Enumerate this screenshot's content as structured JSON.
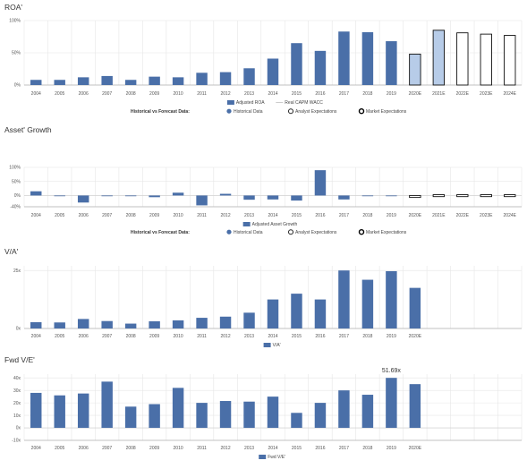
{
  "colors": {
    "historical": "#4a6fa8",
    "analyst": "#b7cce8",
    "market_outline": "#111111",
    "grid": "#e6e6e6",
    "axis": "#b0b0b0",
    "wacc": "#cccccc"
  },
  "chart_data": [
    {
      "id": "roa",
      "type": "bar",
      "title": "ROA'",
      "categories": [
        "2004",
        "2005",
        "2006",
        "2007",
        "2008",
        "2009",
        "2010",
        "2011",
        "2012",
        "2013",
        "2014",
        "2015",
        "2016",
        "2017",
        "2018",
        "2019",
        "2020E",
        "2021E",
        "2022E",
        "2023E",
        "2024E"
      ],
      "y_ticks": [
        "0%",
        "50%",
        "100%"
      ],
      "ylim": [
        0,
        100
      ],
      "historical_values": [
        8,
        8,
        12,
        14,
        8,
        13,
        12,
        19,
        20,
        26,
        41,
        65,
        53,
        83,
        82,
        68,
        null,
        null,
        null,
        null,
        null
      ],
      "forecast_values": [
        null,
        null,
        null,
        null,
        null,
        null,
        null,
        null,
        null,
        null,
        null,
        null,
        null,
        null,
        null,
        null,
        48,
        85,
        81,
        79,
        77
      ],
      "forecast_styles": [
        "analyst",
        "analyst",
        "market",
        "market",
        "market"
      ],
      "series_legend": [
        {
          "name": "Adjusted ROA",
          "swatch": "bar"
        },
        {
          "name": "Real CAPM WACC",
          "swatch": "line"
        }
      ],
      "forecast_legend": {
        "heading": "Historical vs Forecast Data:",
        "items": [
          "Historical Data",
          "Analyst Expectations",
          "Market Expectations"
        ]
      }
    },
    {
      "id": "asset_growth",
      "type": "bar",
      "title": "Asset' Growth",
      "categories": [
        "2004",
        "2005",
        "2006",
        "2007",
        "2008",
        "2009",
        "2010",
        "2011",
        "2012",
        "2013",
        "2014",
        "2015",
        "2016",
        "2017",
        "2018",
        "2019",
        "2020E",
        "2021E",
        "2022E",
        "2023E",
        "2024E"
      ],
      "y_ticks": [
        "-40%",
        "0%",
        "50%",
        "100%"
      ],
      "ylim": [
        -40,
        100
      ],
      "historical_values": [
        15,
        0,
        -25,
        0,
        -1,
        -6,
        10,
        -35,
        6,
        -15,
        -14,
        -18,
        90,
        -14,
        0,
        0,
        null,
        null,
        null,
        null,
        null
      ],
      "forecast_values": [
        null,
        null,
        null,
        null,
        null,
        null,
        null,
        null,
        null,
        null,
        null,
        null,
        null,
        null,
        null,
        null,
        -3,
        3,
        3,
        3,
        3
      ],
      "forecast_styles": [
        "market",
        "market",
        "market",
        "market",
        "market"
      ],
      "series_legend": [
        {
          "name": "Adjusted Asset Growth",
          "swatch": "bar"
        }
      ],
      "forecast_legend": {
        "heading": "Historical vs Forecast Data:",
        "items": [
          "Historical Data",
          "Analyst Expectations",
          "Market Expectations"
        ]
      }
    },
    {
      "id": "va",
      "type": "bar",
      "title": "V/A'",
      "categories": [
        "2004",
        "2005",
        "2006",
        "2007",
        "2008",
        "2009",
        "2010",
        "2011",
        "2012",
        "2013",
        "2014",
        "2015",
        "2016",
        "2017",
        "2018",
        "2019",
        "2020E",
        "",
        "",
        "",
        ""
      ],
      "y_ticks": [
        "0x",
        "25x"
      ],
      "ylim": [
        0,
        27
      ],
      "historical_values": [
        2.7,
        2.6,
        4.1,
        3.2,
        2.1,
        3.1,
        3.5,
        4.6,
        5.1,
        6.8,
        12.5,
        15.0,
        12.5,
        25.0,
        21.0,
        24.7,
        17.5,
        null,
        null,
        null,
        null
      ],
      "forecast_values": [
        null,
        null,
        null,
        null,
        null,
        null,
        null,
        null,
        null,
        null,
        null,
        null,
        null,
        null,
        null,
        null,
        null,
        null,
        null,
        null,
        null
      ],
      "forecast_styles": [],
      "series_legend": [
        {
          "name": "V/A'",
          "swatch": "bar"
        }
      ],
      "forecast_legend": null
    },
    {
      "id": "fwd_ve",
      "type": "bar",
      "title": "Fwd V/E'",
      "categories": [
        "2004",
        "2005",
        "2006",
        "2007",
        "2008",
        "2009",
        "2010",
        "2011",
        "2012",
        "2013",
        "2014",
        "2015",
        "2016",
        "2017",
        "2018",
        "2019",
        "2020E",
        "",
        "",
        "",
        ""
      ],
      "y_ticks": [
        "-10x",
        "0x",
        "10x",
        "20x",
        "30x",
        "40x"
      ],
      "ylim": [
        -10,
        43
      ],
      "historical_values": [
        28,
        26,
        27.5,
        37,
        17,
        19,
        32,
        20,
        21.5,
        21,
        25,
        12,
        20,
        30,
        26.5,
        40,
        35,
        null,
        null,
        null,
        null
      ],
      "forecast_values": [
        null,
        null,
        null,
        null,
        null,
        null,
        null,
        null,
        null,
        null,
        null,
        null,
        null,
        null,
        null,
        null,
        null,
        null,
        null,
        null,
        null
      ],
      "forecast_styles": [],
      "data_label": {
        "index": 15,
        "text": "51.69x"
      },
      "series_legend": [
        {
          "name": "Fwd V/E'",
          "swatch": "bar"
        }
      ],
      "forecast_legend": null
    }
  ]
}
